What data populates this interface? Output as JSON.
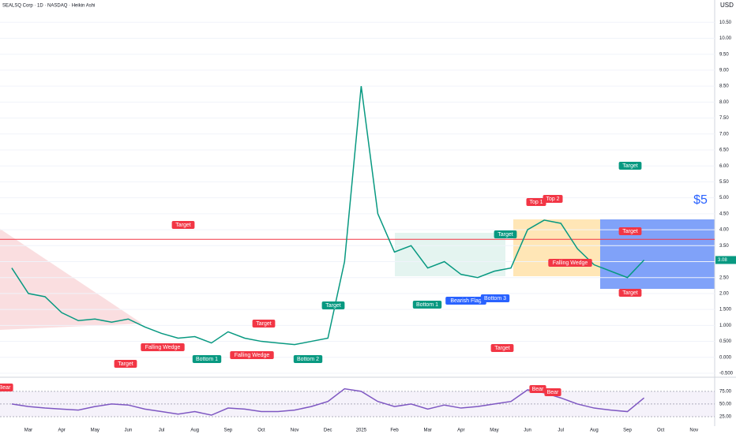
{
  "chart_data": [
    {
      "type": "line",
      "title": "SEALSQ Corp · 1D · NASDAQ · Heikin Ashi",
      "y_unit": "USD",
      "price_tag": "3.08",
      "categories": [
        null,
        "Mar",
        null,
        "Apr",
        null,
        "May",
        null,
        "Jun",
        null,
        "Jul",
        null,
        "Aug",
        null,
        "Sep",
        null,
        "Oct",
        null,
        "Nov",
        null,
        "Dec",
        null,
        "2025",
        null,
        "Feb",
        null,
        "Mar",
        null,
        "Apr",
        null,
        "May",
        null,
        "Jun",
        null,
        "Jul",
        null,
        "Aug",
        null,
        "Sep",
        null,
        "Oct",
        null,
        "Nov"
      ],
      "series": [
        {
          "color": "#089981",
          "values": [
            2.8,
            2.0,
            1.9,
            1.4,
            1.15,
            1.2,
            1.1,
            1.2,
            0.95,
            0.75,
            0.6,
            0.65,
            0.45,
            0.8,
            0.6,
            0.5,
            0.45,
            0.4,
            0.5,
            0.6,
            3.0,
            8.5,
            4.5,
            3.3,
            3.5,
            2.8,
            3.0,
            2.6,
            2.5,
            2.7,
            2.8,
            4.0,
            4.3,
            4.2,
            3.4,
            2.9,
            2.7,
            2.5,
            3.05,
            null,
            null,
            null
          ]
        }
      ],
      "levels": [
        {
          "value": 3.7,
          "color": "#f23645"
        }
      ],
      "ylim": [
        -0.55,
        11.2
      ],
      "yticks": [
        {
          "value": -0.5,
          "label": "-0.500"
        },
        {
          "value": 0,
          "label": "0.000"
        },
        {
          "value": 0.5,
          "label": "0.500"
        },
        {
          "value": 1,
          "label": "1.000"
        },
        {
          "value": 1.5,
          "label": "1.500"
        },
        {
          "value": 2,
          "label": "2.00"
        },
        {
          "value": 2.5,
          "label": "2.50"
        },
        {
          "value": 3,
          "label": "3.00"
        },
        {
          "value": 3.5,
          "label": "3.50"
        },
        {
          "value": 4,
          "label": "4.00"
        },
        {
          "value": 4.5,
          "label": "4.50"
        },
        {
          "value": 5,
          "label": "5.00"
        },
        {
          "value": 5.5,
          "label": "5.50"
        },
        {
          "value": 6,
          "label": "6.00"
        },
        {
          "value": 6.5,
          "label": "6.50"
        },
        {
          "value": 7,
          "label": "7.00"
        },
        {
          "value": 7.5,
          "label": "7.50"
        },
        {
          "value": 8,
          "label": "8.00"
        },
        {
          "value": 8.5,
          "label": "8.50"
        },
        {
          "value": 9,
          "label": "9.00"
        },
        {
          "value": 9.5,
          "label": "9.50"
        },
        {
          "value": 10,
          "label": "10.00"
        },
        {
          "value": 10.5,
          "label": "10.50"
        }
      ],
      "grid": true,
      "annotations": [
        {
          "text": "Target",
          "color": "#f23645"
        },
        {
          "text": "Target",
          "color": "#f23645"
        },
        {
          "text": "Target",
          "color": "#f23645"
        },
        {
          "text": "Target",
          "color": "#089981"
        },
        {
          "text": "Target",
          "color": "#f23645"
        },
        {
          "text": "Target",
          "color": "#089981"
        },
        {
          "text": "Target",
          "color": "#089981"
        },
        {
          "text": "Target",
          "color": "#f23645"
        },
        {
          "text": "Target",
          "color": "#f23645"
        },
        {
          "text": "Falling Wedge",
          "color": "#f23645"
        },
        {
          "text": "Falling Wedge",
          "color": "#f23645"
        },
        {
          "text": "Falling Wedge",
          "color": "#f23645"
        },
        {
          "text": "Bottom 1",
          "color": "#089981"
        },
        {
          "text": "Bottom 2",
          "color": "#089981"
        },
        {
          "text": "Bottom 1",
          "color": "#089981"
        },
        {
          "text": "Bearish Flag",
          "color": "#2962ff"
        },
        {
          "text": "Bottom 3",
          "color": "#2962ff"
        },
        {
          "text": "Top 1",
          "color": "#f23645"
        },
        {
          "text": "Top 2",
          "color": "#f23645"
        },
        {
          "text": "$5",
          "color": "#2962ff"
        }
      ]
    },
    {
      "type": "line",
      "series": [
        {
          "color": "#7e57c2",
          "values": [
            50,
            45,
            42,
            40,
            38,
            45,
            50,
            48,
            40,
            35,
            30,
            35,
            28,
            42,
            40,
            35,
            35,
            38,
            45,
            55,
            80,
            75,
            55,
            45,
            50,
            40,
            48,
            42,
            45,
            50,
            55,
            78,
            72,
            62,
            50,
            42,
            38,
            35,
            62,
            null,
            null,
            null
          ]
        }
      ],
      "ylim": [
        14,
        92
      ],
      "yticks": [
        {
          "value": 25,
          "label": "25.00"
        },
        {
          "value": 50,
          "label": "50.00"
        },
        {
          "value": 75,
          "label": "75.00"
        }
      ],
      "annotations": [
        {
          "text": "Bear",
          "color": "#f23645"
        },
        {
          "text": "Bear",
          "color": "#f23645"
        },
        {
          "text": "Bear",
          "color": "#f23645"
        }
      ]
    }
  ]
}
